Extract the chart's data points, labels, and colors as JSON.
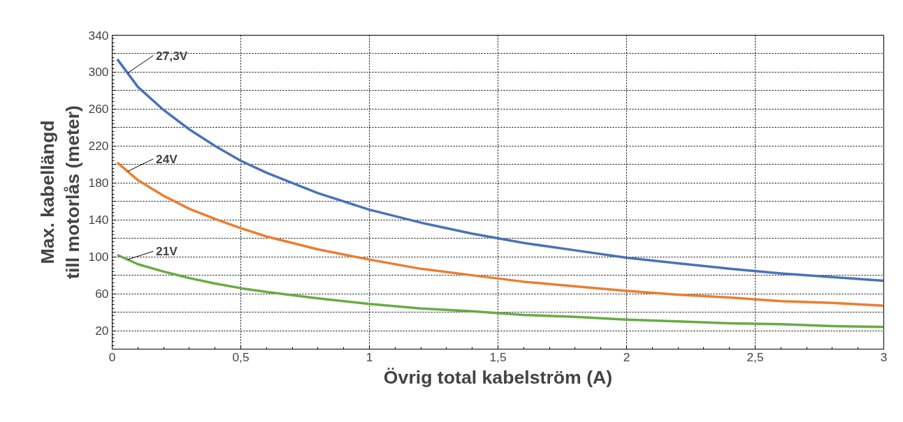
{
  "chart_data": {
    "type": "line",
    "xlabel": "Övrig total kabelström (A)",
    "ylabel": "Max. kabellängd\ntill motorlås (meter)",
    "x": [
      0.02,
      0.1,
      0.2,
      0.3,
      0.4,
      0.5,
      0.6,
      0.8,
      1.0,
      1.2,
      1.4,
      1.6,
      1.8,
      2.0,
      2.2,
      2.4,
      2.6,
      2.8,
      3.0
    ],
    "series": [
      {
        "name": "27,3V",
        "color": "#4a72b8",
        "values": [
          314,
          284,
          259,
          238,
          220,
          204,
          191,
          169,
          151,
          137,
          125,
          115,
          107,
          99,
          93,
          87,
          82,
          78,
          74
        ]
      },
      {
        "name": "24V",
        "color": "#ec7d31",
        "values": [
          202,
          183,
          166,
          152,
          141,
          131,
          122,
          108,
          97,
          87,
          80,
          73,
          68,
          63,
          59,
          56,
          52,
          50,
          47
        ]
      },
      {
        "name": "21V",
        "color": "#6aab45",
        "values": [
          102,
          92,
          84,
          77,
          71,
          66,
          62,
          55,
          49,
          44,
          41,
          37,
          35,
          32,
          30,
          28,
          27,
          25,
          24
        ]
      }
    ],
    "xlim": [
      0,
      3
    ],
    "xticks": [
      0,
      {
        "value": 0.5,
        "label": "0,5"
      },
      1,
      {
        "value": 1.5,
        "label": "1,5"
      },
      2,
      {
        "value": 2.5,
        "label": "2,5"
      },
      3
    ],
    "ylim": [
      0,
      340
    ],
    "yticks": [
      {
        "value": 0,
        "label": null
      },
      20,
      {
        "value": 40,
        "label": null
      },
      60,
      {
        "value": 80,
        "label": null
      },
      100,
      {
        "value": 120,
        "label": null
      },
      140,
      {
        "value": 160,
        "label": null
      },
      180,
      {
        "value": 200,
        "label": null
      },
      220,
      {
        "value": 240,
        "label": null
      },
      260,
      {
        "value": 280,
        "label": null
      },
      300,
      {
        "value": 320,
        "label": null
      },
      340
    ],
    "grid": true,
    "legend": false,
    "marker": "none",
    "line_style": "solid"
  }
}
